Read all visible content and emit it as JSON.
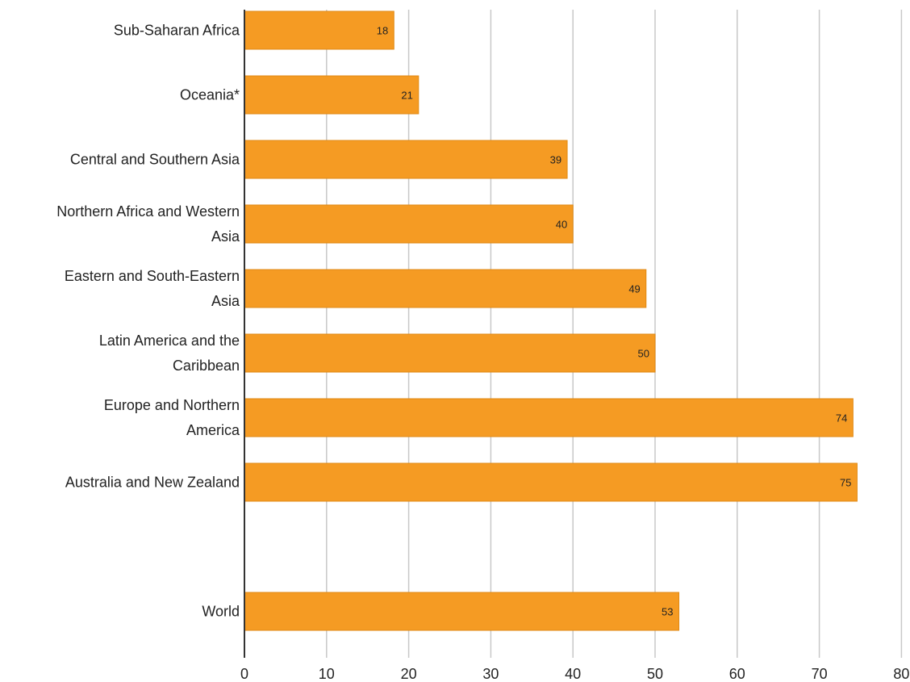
{
  "chart_data": {
    "type": "bar",
    "orientation": "horizontal",
    "categories": [
      [
        "Sub-Saharan Africa"
      ],
      [
        "Oceania*"
      ],
      [
        "Central and Southern Asia"
      ],
      [
        "Northern Africa and Western",
        "Asia"
      ],
      [
        "Eastern and South-Eastern",
        "Asia"
      ],
      [
        "Latin America and the",
        "Caribbean"
      ],
      [
        "Europe and Northern",
        "America"
      ],
      [
        "Australia and New Zealand"
      ],
      [
        ""
      ],
      [
        "World"
      ]
    ],
    "values": [
      18.2,
      21.2,
      39.3,
      40.0,
      48.9,
      50.0,
      74.1,
      74.6,
      null,
      52.9
    ],
    "data_labels": [
      "18",
      "21",
      "39",
      "40",
      "49",
      "50",
      "74",
      "75",
      "",
      "53"
    ],
    "xlim": [
      0,
      80
    ],
    "xticks": [
      0,
      10,
      20,
      30,
      40,
      50,
      60,
      70,
      80
    ],
    "grid": true,
    "bar_color": "#f59b23",
    "bar_edge_color": "#e08a14",
    "title": "",
    "xlabel": "",
    "ylabel": ""
  }
}
